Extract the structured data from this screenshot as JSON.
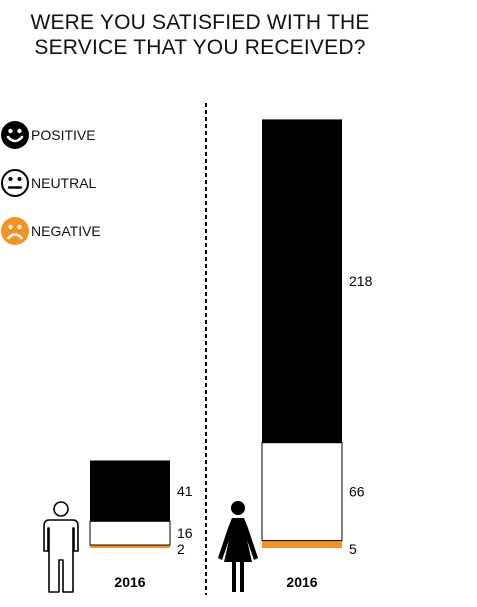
{
  "title_line1": "WERE YOU SATISFIED WITH THE",
  "title_line2": "SERVICE THAT YOU RECEIVED?",
  "legend": [
    {
      "label": "POSITIVE",
      "icon": "smiley-positive-icon",
      "color": "#000000"
    },
    {
      "label": "NEUTRAL",
      "icon": "smiley-neutral-icon",
      "color": "#ffffff"
    },
    {
      "label": "NEGATIVE",
      "icon": "smiley-negative-icon",
      "color": "#f39325"
    }
  ],
  "chart_data": {
    "type": "bar",
    "stacked": true,
    "categories": [
      "2016",
      "2016"
    ],
    "category_icons": [
      "male-figure-icon",
      "female-figure-icon"
    ],
    "series": [
      {
        "name": "NEGATIVE",
        "color": "#f39325",
        "values": [
          2,
          5
        ]
      },
      {
        "name": "NEUTRAL",
        "color": "#ffffff",
        "values": [
          16,
          66
        ]
      },
      {
        "name": "POSITIVE",
        "color": "#000000",
        "values": [
          41,
          218
        ]
      }
    ],
    "legend_position": "top-left",
    "grid": false
  }
}
